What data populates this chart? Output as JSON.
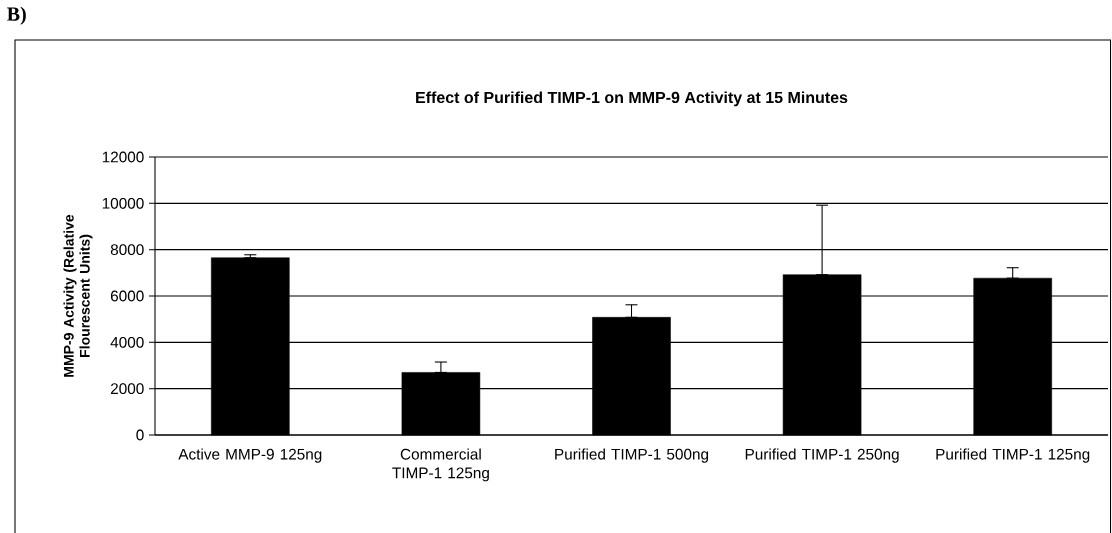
{
  "chart_data": {
    "type": "bar",
    "title": "Effect of Purified TIMP-1 on MMP-9 Activity at 15 Minutes",
    "ylabel": "MMP-9 Activity (Relative Flourescent Units)",
    "categories": [
      "Active MMP-9 125ng",
      "Commercial TIMP-1 125ng",
      "Purified TIMP-1 500ng",
      "Purified TIMP-1 250ng",
      "Purified TIMP-1 125ng"
    ],
    "values": [
      7650,
      2700,
      5080,
      6920,
      6770
    ],
    "errors": [
      [
        7650,
        7780
      ],
      [
        2700,
        3150
      ],
      [
        5080,
        5620
      ],
      [
        6920,
        9920
      ],
      [
        6770,
        7220
      ]
    ],
    "color": "#000000",
    "ylim": [
      0,
      12000
    ],
    "yticks": [
      0,
      2000,
      4000,
      6000,
      8000,
      10000,
      12000
    ],
    "grid": "y",
    "annotations": [
      "B)"
    ]
  }
}
